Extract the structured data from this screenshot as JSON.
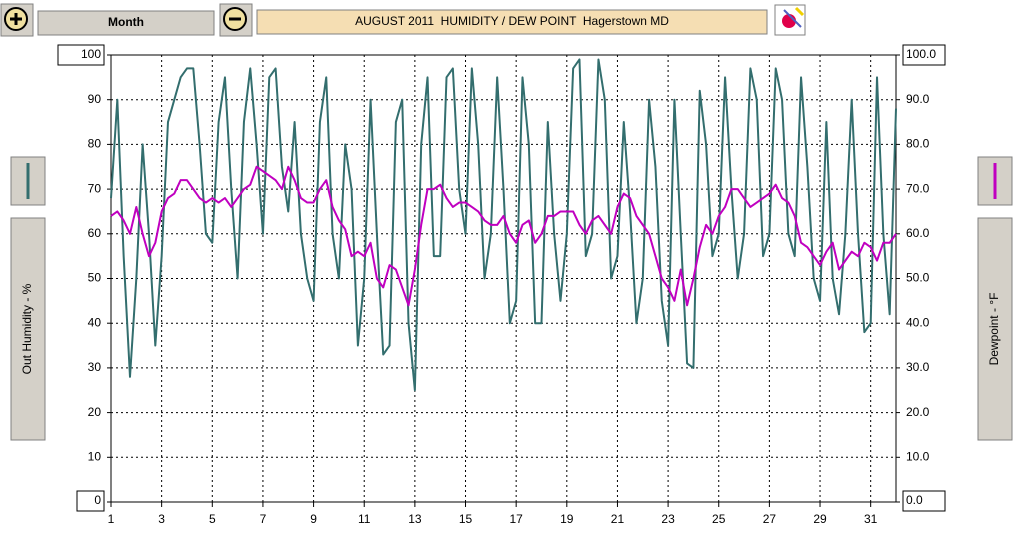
{
  "toolbar": {
    "range_button": "Month"
  },
  "chart_data": {
    "type": "line",
    "title": "AUGUST 2011  HUMIDITY / DEW POINT  Hagerstown MD",
    "x": [
      1,
      1.25,
      1.5,
      1.75,
      2,
      2.25,
      2.5,
      2.75,
      3,
      3.25,
      3.5,
      3.75,
      4,
      4.25,
      4.5,
      4.75,
      5,
      5.25,
      5.5,
      5.75,
      6,
      6.25,
      6.5,
      6.75,
      7,
      7.25,
      7.5,
      7.75,
      8,
      8.25,
      8.5,
      8.75,
      9,
      9.25,
      9.5,
      9.75,
      10,
      10.25,
      10.5,
      10.75,
      11,
      11.25,
      11.5,
      11.75,
      12,
      12.25,
      12.5,
      12.75,
      13,
      13.25,
      13.5,
      13.75,
      14,
      14.25,
      14.5,
      14.75,
      15,
      15.25,
      15.5,
      15.75,
      16,
      16.25,
      16.5,
      16.75,
      17,
      17.25,
      17.5,
      17.75,
      18,
      18.25,
      18.5,
      18.75,
      19,
      19.25,
      19.5,
      19.75,
      20,
      20.25,
      20.5,
      20.75,
      21,
      21.25,
      21.5,
      21.75,
      22,
      22.25,
      22.5,
      22.75,
      23,
      23.25,
      23.5,
      23.75,
      24,
      24.25,
      24.5,
      24.75,
      25,
      25.25,
      25.5,
      25.75,
      26,
      26.25,
      26.5,
      26.75,
      27,
      27.25,
      27.5,
      27.75,
      28,
      28.25,
      28.5,
      28.75,
      29,
      29.25,
      29.5,
      29.75,
      30,
      30.25,
      30.5,
      30.75,
      31,
      31.25,
      31.5,
      31.75,
      32
    ],
    "xlim": [
      1,
      32
    ],
    "xticks": [
      1,
      3,
      5,
      7,
      9,
      11,
      13,
      15,
      17,
      19,
      21,
      23,
      25,
      27,
      29,
      31
    ],
    "ylim": [
      0,
      100
    ],
    "yticks": [
      0,
      10,
      20,
      30,
      40,
      50,
      60,
      70,
      80,
      90,
      100
    ],
    "y2lim": [
      0,
      100
    ],
    "y2ticks": [
      {
        "value": 0,
        "label": "0.0"
      },
      {
        "value": 10,
        "label": "10.0"
      },
      {
        "value": 20,
        "label": "20.0"
      },
      {
        "value": 30,
        "label": "30.0"
      },
      {
        "value": 40,
        "label": "40.0"
      },
      {
        "value": 50,
        "label": "50.0"
      },
      {
        "value": 60,
        "label": "60.0"
      },
      {
        "value": 70,
        "label": "70.0"
      },
      {
        "value": 80,
        "label": "80.0"
      },
      {
        "value": 90,
        "label": "90.0"
      },
      {
        "value": 100,
        "label": "100.0"
      }
    ],
    "grid": true,
    "series": [
      {
        "name": "Out Humidity - %",
        "color": "#336e6e",
        "axis": "y",
        "values": [
          68,
          90,
          55,
          28,
          50,
          80,
          60,
          35,
          55,
          85,
          90,
          95,
          97,
          97,
          80,
          60,
          58,
          85,
          95,
          70,
          50,
          85,
          97,
          80,
          60,
          95,
          97,
          75,
          65,
          85,
          60,
          50,
          45,
          85,
          95,
          60,
          50,
          80,
          70,
          35,
          50,
          90,
          60,
          33,
          35,
          85,
          90,
          40,
          25,
          80,
          95,
          55,
          55,
          95,
          97,
          70,
          60,
          97,
          80,
          50,
          60,
          95,
          70,
          40,
          45,
          95,
          80,
          40,
          40,
          85,
          60,
          45,
          60,
          97,
          99,
          55,
          60,
          99,
          90,
          50,
          55,
          85,
          65,
          40,
          50,
          90,
          75,
          45,
          35,
          90,
          60,
          31,
          30,
          92,
          80,
          55,
          60,
          95,
          70,
          50,
          60,
          97,
          90,
          55,
          60,
          97,
          90,
          60,
          55,
          95,
          75,
          50,
          45,
          85,
          50,
          42,
          60,
          90,
          60,
          38,
          40,
          95,
          60,
          42,
          88
        ]
      },
      {
        "name": "Dewpoint - °F",
        "color": "#c000c0",
        "axis": "y2",
        "values": [
          64,
          65,
          63,
          60,
          66,
          60,
          55,
          58,
          65,
          68,
          69,
          72,
          72,
          70,
          68,
          67,
          68,
          67,
          68,
          66,
          68,
          70,
          71,
          75,
          74,
          73,
          72,
          70,
          75,
          72,
          68,
          67,
          67,
          70,
          72,
          66,
          63,
          61,
          55,
          56,
          55,
          58,
          50,
          48,
          53,
          52,
          48,
          44,
          52,
          62,
          70,
          70,
          71,
          68,
          66,
          67,
          67,
          66,
          65,
          63,
          62,
          62,
          64,
          60,
          58,
          62,
          63,
          58,
          60,
          64,
          64,
          65,
          65,
          65,
          62,
          60,
          63,
          64,
          62,
          60,
          66,
          69,
          68,
          64,
          62,
          60,
          55,
          50,
          48,
          45,
          52,
          44,
          50,
          57,
          62,
          60,
          64,
          66,
          70,
          70,
          68,
          66,
          67,
          68,
          69,
          71,
          68,
          67,
          64,
          58,
          57,
          55,
          53,
          56,
          58,
          52,
          54,
          56,
          55,
          58,
          57,
          54,
          58,
          58,
          60
        ]
      }
    ]
  }
}
